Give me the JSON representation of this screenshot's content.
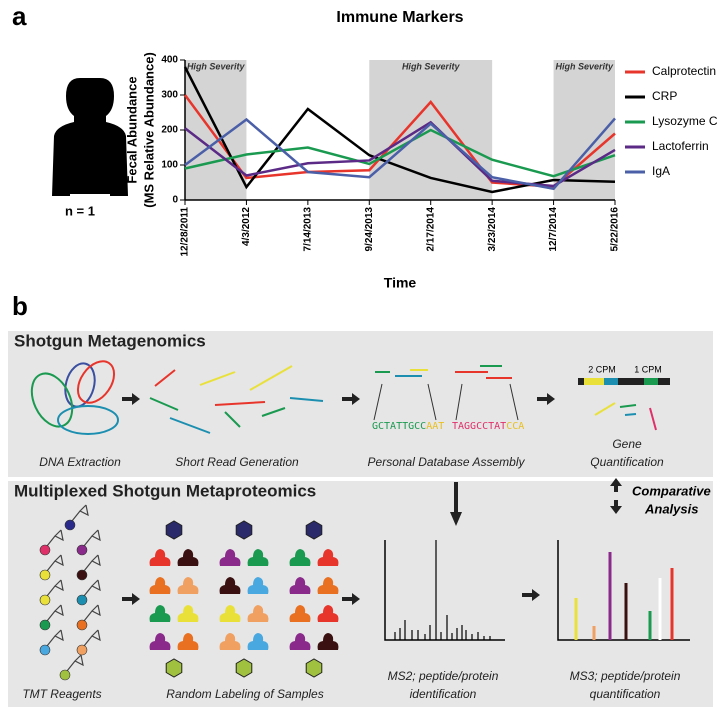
{
  "panel_labels": [
    "a",
    "b"
  ],
  "subject": "n = 1",
  "chart_data": {
    "type": "line",
    "title": "Immune Markers",
    "y_label": [
      "Fecal Abundance",
      "(MS Relative Abundance)"
    ],
    "x_label": "Time",
    "categories": [
      "12/28/2011",
      "4/3/2012",
      "7/14/2013",
      "9/24/2013",
      "2/17/2014",
      "3/23/2014",
      "12/7/2014",
      "5/22/2016"
    ],
    "ylim": [
      0,
      400
    ],
    "yticks": [
      0,
      100,
      200,
      300,
      400
    ],
    "annotations": [
      "High Severity",
      "High Severity",
      "High Severity"
    ],
    "legend": "right",
    "series": [
      {
        "name": "Calprotectin",
        "color": "#e8352c",
        "values": [
          300,
          63,
          80,
          85,
          280,
          50,
          38,
          190
        ]
      },
      {
        "name": "CRP",
        "color": "#000000",
        "values": [
          380,
          37,
          260,
          128,
          63,
          23,
          57,
          52
        ]
      },
      {
        "name": "Lysozyme C",
        "color": "#1a9a50",
        "values": [
          90,
          130,
          150,
          103,
          200,
          115,
          68,
          128
        ]
      },
      {
        "name": "Lactoferrin",
        "color": "#5b2a86",
        "values": [
          205,
          70,
          105,
          113,
          222,
          55,
          40,
          143
        ]
      },
      {
        "name": "IgA",
        "color": "#4a5fa8",
        "values": [
          100,
          230,
          80,
          65,
          218,
          65,
          32,
          233
        ]
      }
    ]
  },
  "diagram": {
    "metagenomics": {
      "title": "Shotgun Metagenomics",
      "steps": [
        "DNA Extraction",
        "Short Read Generation",
        "Personal Database Assembly",
        [
          "Gene",
          "Quantification"
        ]
      ],
      "sequences": [
        [
          "GCTATTGCC",
          "AAT"
        ],
        [
          "TAGGCCTAT",
          "CCA"
        ]
      ],
      "abundances": [
        "2 CPM",
        "1 CPM"
      ]
    },
    "metaproteomics": {
      "title": "Multiplexed Shotgun Metaproteomics",
      "comparison": [
        "Comparative",
        "Analysis"
      ],
      "steps": [
        "TMT Reagents",
        "Random Labeling of Samples",
        [
          "MS2; peptide/protein",
          "identification"
        ],
        [
          "MS3; peptide/protein",
          "quantification"
        ]
      ]
    }
  }
}
